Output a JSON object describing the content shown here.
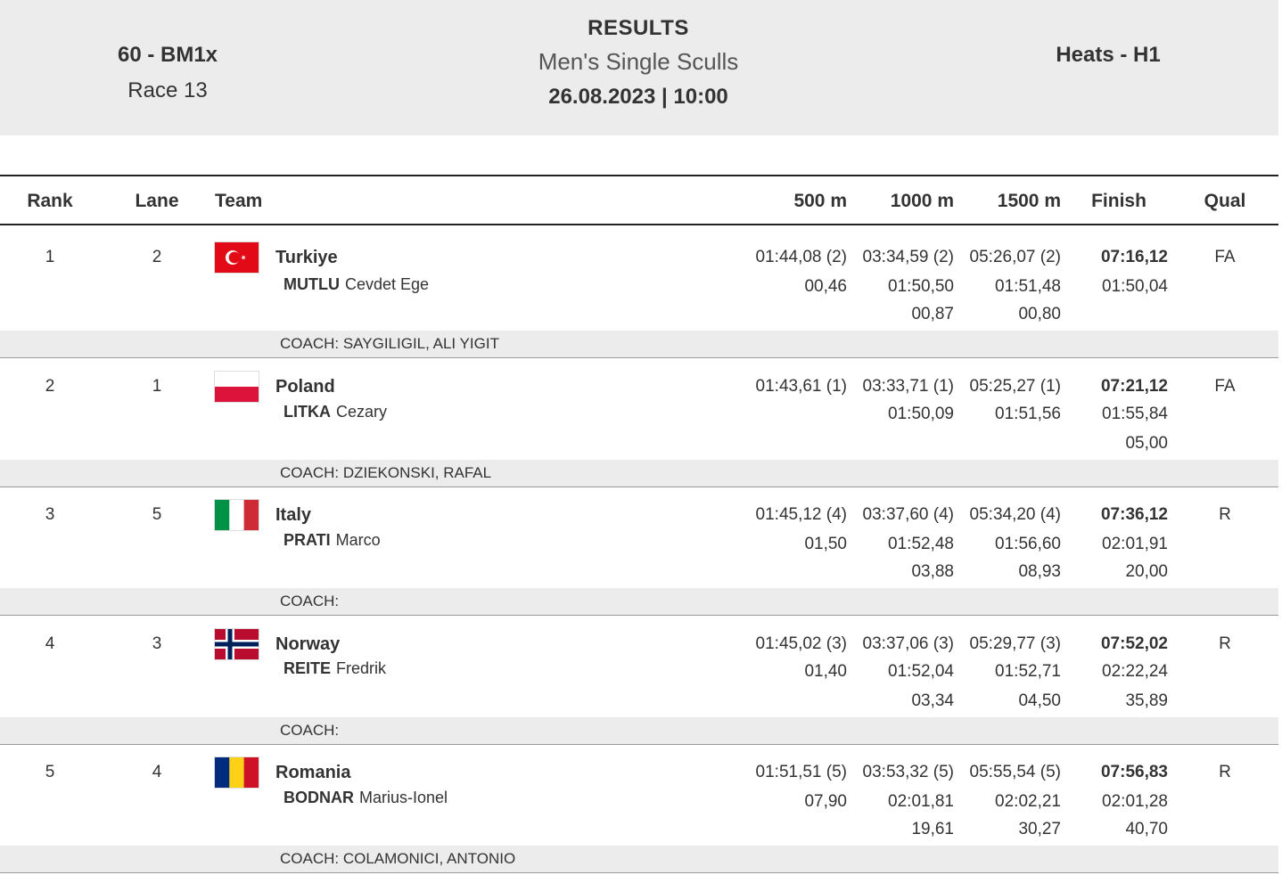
{
  "header": {
    "event_code": "60 - BM1x",
    "race": "Race 13",
    "results_label": "RESULTS",
    "event_name": "Men's Single Sculls",
    "date_time": "26.08.2023 | 10:00",
    "phase": "Heats - H1"
  },
  "columns": {
    "rank": "Rank",
    "lane": "Lane",
    "team": "Team",
    "m500": "500 m",
    "m1000": "1000 m",
    "m1500": "1500 m",
    "finish": "Finish",
    "qual": "Qual"
  },
  "rows": [
    {
      "rank": "1",
      "lane": "2",
      "country": "Turkiye",
      "surname": "MUTLU",
      "firstname": "Cevdet Ege",
      "flag": "turkey-flag-icon",
      "m500": [
        "01:44,08 (2)",
        "00,46",
        ""
      ],
      "m1000": [
        "03:34,59 (2)",
        "01:50,50",
        "00,87"
      ],
      "m1500": [
        "05:26,07 (2)",
        "01:51,48",
        "00,80"
      ],
      "finish": [
        "07:16,12",
        "01:50,04",
        ""
      ],
      "qual": "FA",
      "coach": "COACH: SAYGILIGIL, ALI YIGIT"
    },
    {
      "rank": "2",
      "lane": "1",
      "country": "Poland",
      "surname": "LITKA",
      "firstname": "Cezary",
      "flag": "poland-flag-icon",
      "m500": [
        "01:43,61 (1)",
        "",
        ""
      ],
      "m1000": [
        "03:33,71 (1)",
        "01:50,09",
        ""
      ],
      "m1500": [
        "05:25,27 (1)",
        "01:51,56",
        ""
      ],
      "finish": [
        "07:21,12",
        "01:55,84",
        "05,00"
      ],
      "qual": "FA",
      "coach": "COACH: DZIEKONSKI, RAFAL"
    },
    {
      "rank": "3",
      "lane": "5",
      "country": "Italy",
      "surname": "PRATI",
      "firstname": "Marco",
      "flag": "italy-flag-icon",
      "m500": [
        "01:45,12 (4)",
        "01,50",
        ""
      ],
      "m1000": [
        "03:37,60 (4)",
        "01:52,48",
        "03,88"
      ],
      "m1500": [
        "05:34,20 (4)",
        "01:56,60",
        "08,93"
      ],
      "finish": [
        "07:36,12",
        "02:01,91",
        "20,00"
      ],
      "qual": "R",
      "coach": "COACH:"
    },
    {
      "rank": "4",
      "lane": "3",
      "country": "Norway",
      "surname": "REITE",
      "firstname": "Fredrik",
      "flag": "norway-flag-icon",
      "m500": [
        "01:45,02 (3)",
        "01,40",
        ""
      ],
      "m1000": [
        "03:37,06 (3)",
        "01:52,04",
        "03,34"
      ],
      "m1500": [
        "05:29,77 (3)",
        "01:52,71",
        "04,50"
      ],
      "finish": [
        "07:52,02",
        "02:22,24",
        "35,89"
      ],
      "qual": "R",
      "coach": "COACH:"
    },
    {
      "rank": "5",
      "lane": "4",
      "country": "Romania",
      "surname": "BODNAR",
      "firstname": "Marius-Ionel",
      "flag": "romania-flag-icon",
      "m500": [
        "01:51,51 (5)",
        "07,90",
        ""
      ],
      "m1000": [
        "03:53,32 (5)",
        "02:01,81",
        "19,61"
      ],
      "m1500": [
        "05:55,54 (5)",
        "02:02,21",
        "30,27"
      ],
      "finish": [
        "07:56,83",
        "02:01,28",
        "40,70"
      ],
      "qual": "R",
      "coach": "COACH: COLAMONICI, ANTONIO"
    }
  ]
}
